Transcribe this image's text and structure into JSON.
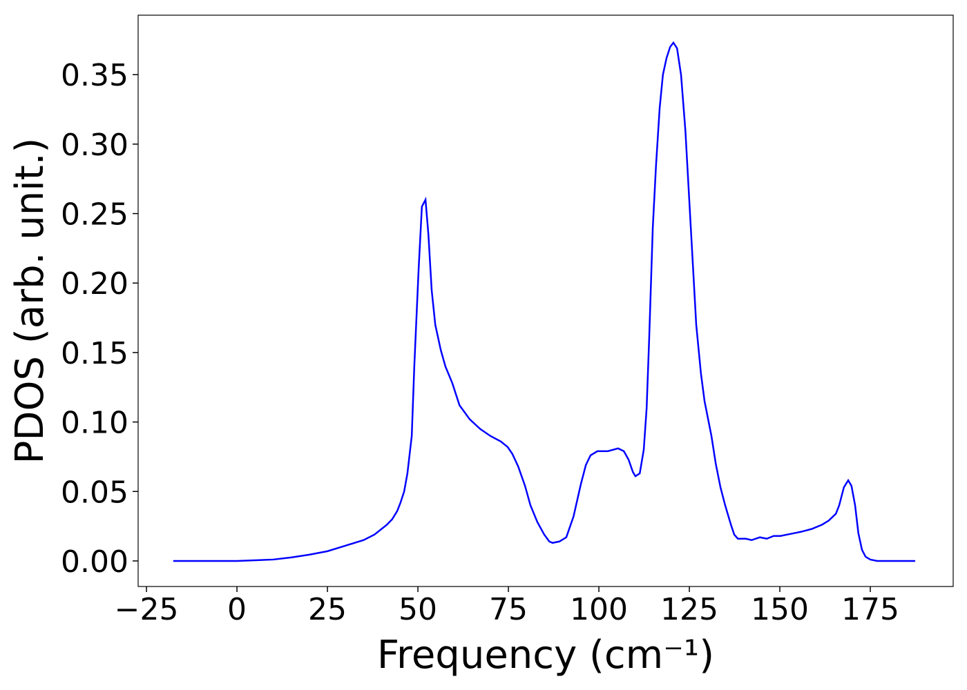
{
  "chart_data": {
    "type": "line",
    "xlabel": "Frequency (cm⁻¹)",
    "ylabel": "PDOS (arb. unit.)",
    "xlim": [
      -27.3,
      197.9
    ],
    "ylim": [
      -0.0184,
      0.3928
    ],
    "xticks": [
      {
        "value": -25,
        "label": "−25"
      },
      0,
      25,
      50,
      75,
      100,
      125,
      150,
      175
    ],
    "yticks": [
      {
        "value": 0,
        "label": "0.00"
      },
      0.05,
      {
        "value": 0.1,
        "label": "0.10"
      },
      0.15,
      {
        "value": 0.2,
        "label": "0.20"
      },
      0.25,
      {
        "value": 0.3,
        "label": "0.30"
      },
      0.35
    ],
    "grid": false,
    "series": [
      {
        "color": "#0000ff",
        "x": [
          -17.6,
          -10,
          0,
          5,
          10,
          15,
          20,
          25,
          30,
          35,
          38,
          41.4,
          42.9,
          44.3,
          45.2,
          46.2,
          47.1,
          48.3,
          49,
          50.2,
          51.1,
          52.1,
          52.9,
          53.8,
          54.8,
          56.3,
          57.6,
          59.5,
          61.5,
          64.3,
          67.2,
          70,
          72.9,
          74.8,
          76.1,
          77.7,
          79.6,
          81.1,
          83,
          84.9,
          86.3,
          87.2,
          89.1,
          91,
          93,
          95,
          96.4,
          97.7,
          99.6,
          102.5,
          105.3,
          106.9,
          108.2,
          109.4,
          110.1,
          111.3,
          112.4,
          113.2,
          113.9,
          114.9,
          115.8,
          116.8,
          117.7,
          118.7,
          119.7,
          120.6,
          121.6,
          122.7,
          123.9,
          125.4,
          126.9,
          128.2,
          129.2,
          131.1,
          132.3,
          133.6,
          134.9,
          136.5,
          137.4,
          138.4,
          140.6,
          142.2,
          144.5,
          146.4,
          148.3,
          150.2,
          152.1,
          154,
          155.9,
          158.8,
          161.6,
          163.5,
          165.5,
          166.4,
          167.7,
          168.9,
          169.8,
          170.8,
          171.7,
          172.7,
          173.7,
          175,
          176.9,
          187.4
        ],
        "values": [
          0,
          0,
          0,
          0.0005,
          0.001,
          0.0025,
          0.0045,
          0.007,
          0.011,
          0.015,
          0.019,
          0.026,
          0.03,
          0.036,
          0.042,
          0.05,
          0.063,
          0.09,
          0.14,
          0.21,
          0.255,
          0.26,
          0.235,
          0.195,
          0.17,
          0.152,
          0.14,
          0.128,
          0.112,
          0.102,
          0.095,
          0.09,
          0.086,
          0.082,
          0.077,
          0.068,
          0.054,
          0.04,
          0.028,
          0.019,
          0.014,
          0.013,
          0.014,
          0.017,
          0.032,
          0.055,
          0.069,
          0.076,
          0.079,
          0.079,
          0.081,
          0.079,
          0.073,
          0.064,
          0.061,
          0.063,
          0.08,
          0.11,
          0.16,
          0.24,
          0.285,
          0.326,
          0.35,
          0.362,
          0.37,
          0.373,
          0.369,
          0.35,
          0.31,
          0.24,
          0.17,
          0.135,
          0.115,
          0.09,
          0.07,
          0.053,
          0.04,
          0.026,
          0.019,
          0.016,
          0.016,
          0.015,
          0.017,
          0.016,
          0.018,
          0.018,
          0.019,
          0.02,
          0.021,
          0.023,
          0.026,
          0.029,
          0.034,
          0.04,
          0.053,
          0.058,
          0.054,
          0.04,
          0.02,
          0.008,
          0.003,
          0.001,
          0,
          0
        ]
      }
    ]
  }
}
